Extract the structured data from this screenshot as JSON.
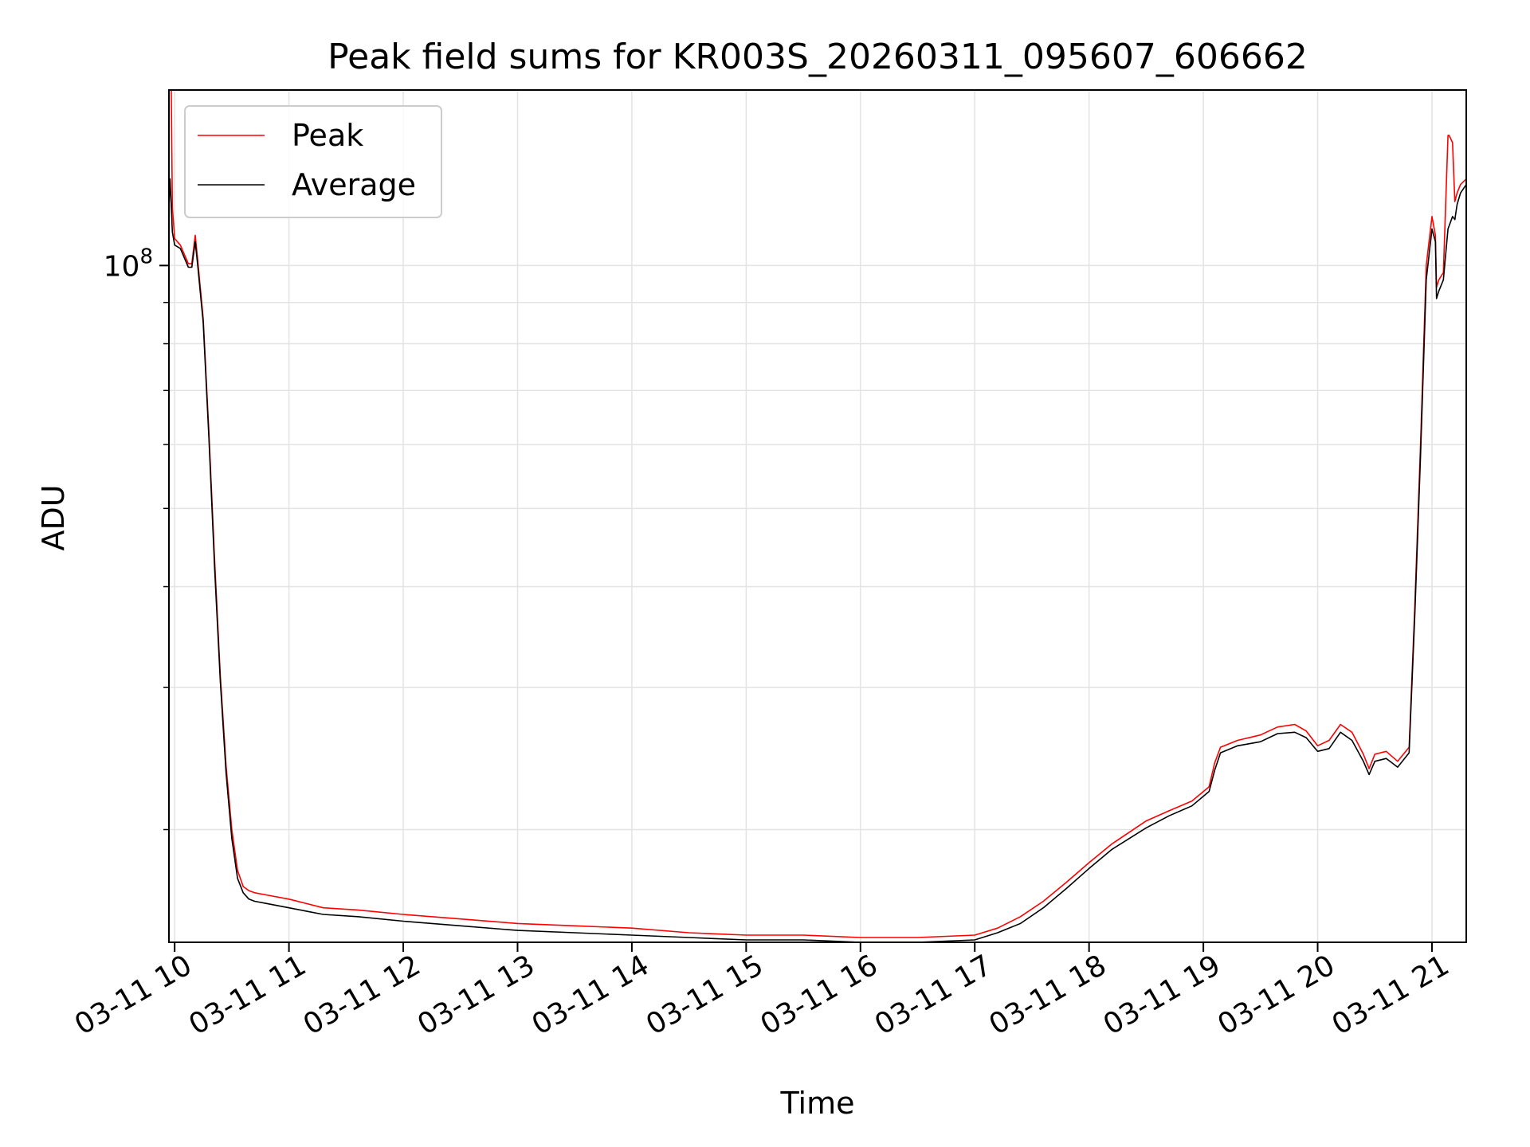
{
  "chart_data": {
    "type": "line",
    "title": "Peak field sums for KR003S_20260311_095607_606662",
    "xlabel": "Time",
    "ylabel": "ADU",
    "yscale": "log",
    "ylim": [
      14500000,
      165000000
    ],
    "xlim": [
      9.95,
      21.3
    ],
    "xticks": [
      {
        "value": 10,
        "label": "03-11 10"
      },
      {
        "value": 11,
        "label": "03-11 11"
      },
      {
        "value": 12,
        "label": "03-11 12"
      },
      {
        "value": 13,
        "label": "03-11 13"
      },
      {
        "value": 14,
        "label": "03-11 14"
      },
      {
        "value": 15,
        "label": "03-11 15"
      },
      {
        "value": 16,
        "label": "03-11 16"
      },
      {
        "value": 17,
        "label": "03-11 17"
      },
      {
        "value": 18,
        "label": "03-11 18"
      },
      {
        "value": 19,
        "label": "03-11 19"
      },
      {
        "value": 20,
        "label": "03-11 20"
      },
      {
        "value": 21,
        "label": "03-11 21"
      }
    ],
    "ytick_major": {
      "value": 100000000,
      "base": "10",
      "exponent": "8"
    },
    "ytick_minor": [
      20000000,
      30000000,
      40000000,
      50000000,
      60000000,
      70000000,
      80000000,
      90000000
    ],
    "grid": true,
    "legend_position": "top-left",
    "series": [
      {
        "name": "Peak",
        "color": "#ff0000",
        "x": [
          9.95,
          9.97,
          9.98,
          10.0,
          10.05,
          10.12,
          10.15,
          10.18,
          10.2,
          10.25,
          10.3,
          10.35,
          10.4,
          10.45,
          10.5,
          10.55,
          10.6,
          10.65,
          10.7,
          10.8,
          11.0,
          11.3,
          11.6,
          12.0,
          12.5,
          13.0,
          13.5,
          14.0,
          14.5,
          15.0,
          15.5,
          16.0,
          16.5,
          17.0,
          17.2,
          17.4,
          17.6,
          17.8,
          18.0,
          18.2,
          18.5,
          18.7,
          18.9,
          19.05,
          19.1,
          19.15,
          19.3,
          19.5,
          19.65,
          19.8,
          19.9,
          20.0,
          20.1,
          20.2,
          20.3,
          20.4,
          20.45,
          20.5,
          20.6,
          20.7,
          20.8,
          20.85,
          20.9,
          20.95,
          21.0,
          21.03,
          21.04,
          21.06,
          21.1,
          21.14,
          21.15,
          21.18,
          21.2,
          21.22,
          21.25,
          21.3
        ],
        "y": [
          165000000,
          165000000,
          118000000,
          108000000,
          106000000,
          100500000,
          100500000,
          109000000,
          102000000,
          86000000,
          62000000,
          43000000,
          31000000,
          24000000,
          20000000,
          17800000,
          17000000,
          16800000,
          16700000,
          16600000,
          16400000,
          16000000,
          15900000,
          15700000,
          15500000,
          15300000,
          15200000,
          15100000,
          14900000,
          14800000,
          14800000,
          14700000,
          14700000,
          14800000,
          15100000,
          15600000,
          16300000,
          17200000,
          18200000,
          19200000,
          20500000,
          21100000,
          21700000,
          22600000,
          24200000,
          25300000,
          25800000,
          26200000,
          26800000,
          27000000,
          26500000,
          25400000,
          25800000,
          27000000,
          26400000,
          24800000,
          23800000,
          24800000,
          25000000,
          24300000,
          25300000,
          38000000,
          60000000,
          100000000,
          115000000,
          109000000,
          94000000,
          96000000,
          98000000,
          145000000,
          145000000,
          142000000,
          120000000,
          123000000,
          126000000,
          128000000
        ]
      },
      {
        "name": "Average",
        "color": "#000000",
        "x": [
          9.95,
          9.96,
          9.98,
          10.0,
          10.05,
          10.12,
          10.15,
          10.18,
          10.2,
          10.25,
          10.3,
          10.35,
          10.4,
          10.45,
          10.5,
          10.55,
          10.6,
          10.65,
          10.7,
          10.8,
          11.0,
          11.3,
          11.6,
          12.0,
          12.5,
          13.0,
          13.5,
          14.0,
          14.5,
          15.0,
          15.5,
          16.0,
          16.5,
          17.0,
          17.2,
          17.4,
          17.6,
          17.8,
          18.0,
          18.2,
          18.5,
          18.7,
          18.9,
          19.05,
          19.1,
          19.15,
          19.3,
          19.5,
          19.65,
          19.8,
          19.9,
          20.0,
          20.1,
          20.2,
          20.3,
          20.4,
          20.45,
          20.5,
          20.6,
          20.7,
          20.8,
          20.85,
          20.9,
          20.95,
          21.0,
          21.03,
          21.04,
          21.06,
          21.1,
          21.14,
          21.15,
          21.18,
          21.2,
          21.22,
          21.25,
          21.3
        ],
        "y": [
          118000000,
          128000000,
          110000000,
          106000000,
          105000000,
          99500000,
          99500000,
          107000000,
          100500000,
          85000000,
          61000000,
          42000000,
          30500000,
          23500000,
          19500000,
          17400000,
          16700000,
          16400000,
          16300000,
          16200000,
          16000000,
          15700000,
          15600000,
          15400000,
          15200000,
          15000000,
          14900000,
          14800000,
          14700000,
          14600000,
          14600000,
          14500000,
          14500000,
          14600000,
          14900000,
          15300000,
          16000000,
          16900000,
          17900000,
          18900000,
          20100000,
          20800000,
          21400000,
          22300000,
          23700000,
          24900000,
          25400000,
          25700000,
          26300000,
          26400000,
          26000000,
          25000000,
          25200000,
          26400000,
          25800000,
          24300000,
          23400000,
          24300000,
          24500000,
          23900000,
          24900000,
          37000000,
          58000000,
          96000000,
          111000000,
          107000000,
          91000000,
          93000000,
          96000000,
          111000000,
          112000000,
          115000000,
          114000000,
          119000000,
          123000000,
          126000000
        ]
      }
    ]
  }
}
